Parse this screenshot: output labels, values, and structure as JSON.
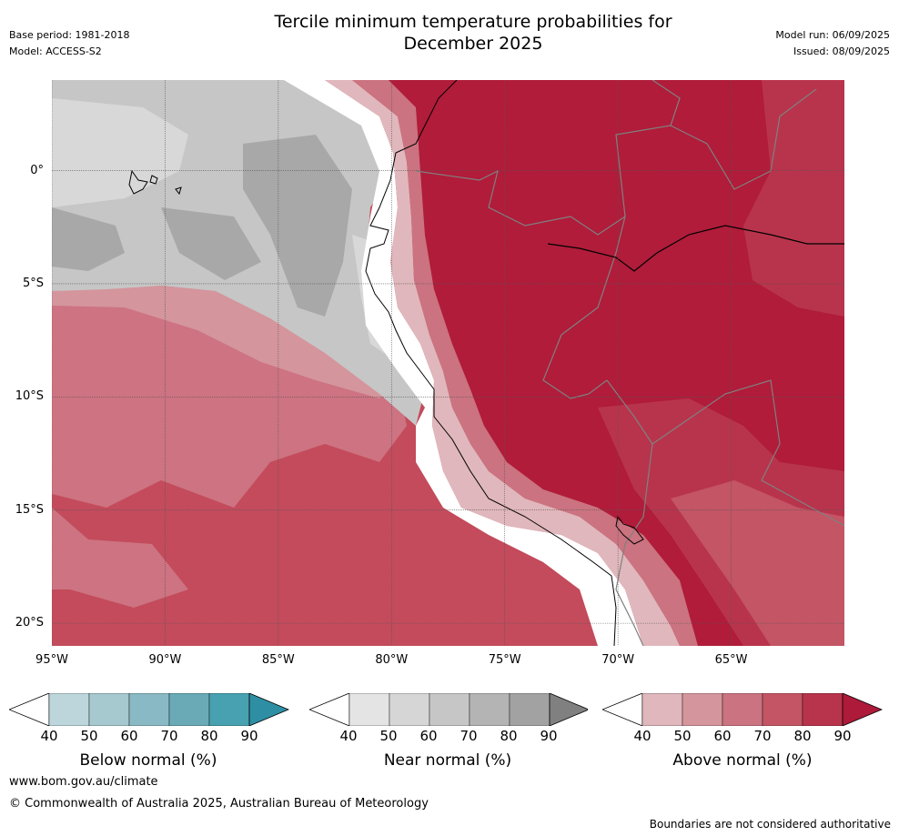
{
  "header": {
    "title_line1": "Tercile minimum temperature probabilities for",
    "title_line2": "December 2025",
    "base_period": "Base period: 1981-2018",
    "model": "Model: ACCESS-S2",
    "model_run": "Model run: 06/09/2025",
    "issued": "Issued: 08/09/2025"
  },
  "map": {
    "lat_labels": [
      "0°",
      "5°S",
      "10°S",
      "15°S",
      "20°S"
    ],
    "lon_labels": [
      "95°W",
      "90°W",
      "85°W",
      "80°W",
      "75°W",
      "70°W",
      "65°W"
    ],
    "lat_values": [
      0,
      -5,
      -10,
      -15,
      -20
    ],
    "lon_values": [
      -95,
      -90,
      -85,
      -80,
      -75,
      -70,
      -65
    ],
    "lat_range": [
      -21,
      4
    ],
    "lon_range": [
      -95,
      -60
    ],
    "grid": true,
    "colors": {
      "ocean_far_south": "#c34b5c",
      "ocean_mid": "#cd7381",
      "near_normal_light": "#d8d8d8",
      "near_normal_mid": "#c6c6c6",
      "near_normal_dark": "#a8a8a8",
      "land": "#b01c3a",
      "coast_white": "#ffffff",
      "border": "#808080",
      "coastline": "#000000"
    }
  },
  "colorbars": [
    {
      "label": "Below normal (%)",
      "ticks": [
        "40",
        "50",
        "60",
        "70",
        "80",
        "90"
      ],
      "colors": [
        "#bdd6dc",
        "#a6c8cf",
        "#89b9c4",
        "#6aaab7",
        "#47a1b0"
      ],
      "arrow_color": "#2e8ea3"
    },
    {
      "label": "Near normal (%)",
      "ticks": [
        "40",
        "50",
        "60",
        "70",
        "80",
        "90"
      ],
      "colors": [
        "#e4e4e4",
        "#d6d6d6",
        "#c6c6c6",
        "#b4b4b4",
        "#a2a2a2"
      ],
      "arrow_color": "#808080"
    },
    {
      "label": "Above normal (%)",
      "ticks": [
        "40",
        "50",
        "60",
        "70",
        "80",
        "90"
      ],
      "colors": [
        "#e0b7bc",
        "#d4959c",
        "#cb7380",
        "#c35565",
        "#b8344c"
      ],
      "arrow_color": "#ad1a3a"
    }
  ],
  "footer": {
    "website": "www.bom.gov.au/climate",
    "copyright": "© Commonwealth of Australia 2025, Australian Bureau of Meteorology",
    "disclaimer": "Boundaries are not considered authoritative"
  }
}
